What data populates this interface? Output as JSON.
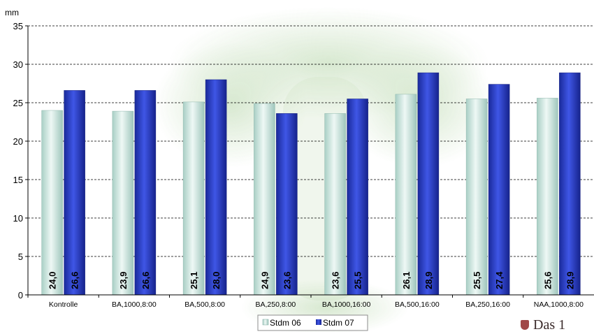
{
  "chart_data": {
    "type": "bar",
    "ylabel": "mm",
    "ylim": [
      0,
      35
    ],
    "yticks": [
      "0",
      "5",
      "10",
      "15",
      "20",
      "25",
      "30",
      "35"
    ],
    "grid": true,
    "legend_placement": "bottom-center",
    "categories": [
      "Kontrolle",
      "BA,1000,8:00",
      "BA,500,8:00",
      "BA,250,8:00",
      "BA,1000,16:00",
      "BA,500,16:00",
      "BA,250,16:00",
      "NAA,1000,8:00"
    ],
    "series": [
      {
        "name": "Stdm 06",
        "color": "#cfe8e1",
        "values": [
          24.0,
          23.9,
          25.1,
          24.9,
          23.6,
          26.1,
          25.5,
          25.6
        ],
        "labels": [
          "24,0",
          "23,9",
          "25,1",
          "24,9",
          "23,6",
          "26,1",
          "25,5",
          "25,6"
        ]
      },
      {
        "name": "Stdm 07",
        "color": "#2a3fc6",
        "values": [
          26.6,
          26.6,
          28.0,
          23.6,
          25.5,
          28.9,
          27.4,
          28.9
        ],
        "labels": [
          "26,6",
          "26,6",
          "28,0",
          "23,6",
          "25,5",
          "28,9",
          "27,4",
          "28,9"
        ]
      }
    ]
  },
  "logo_text": "Das 1"
}
